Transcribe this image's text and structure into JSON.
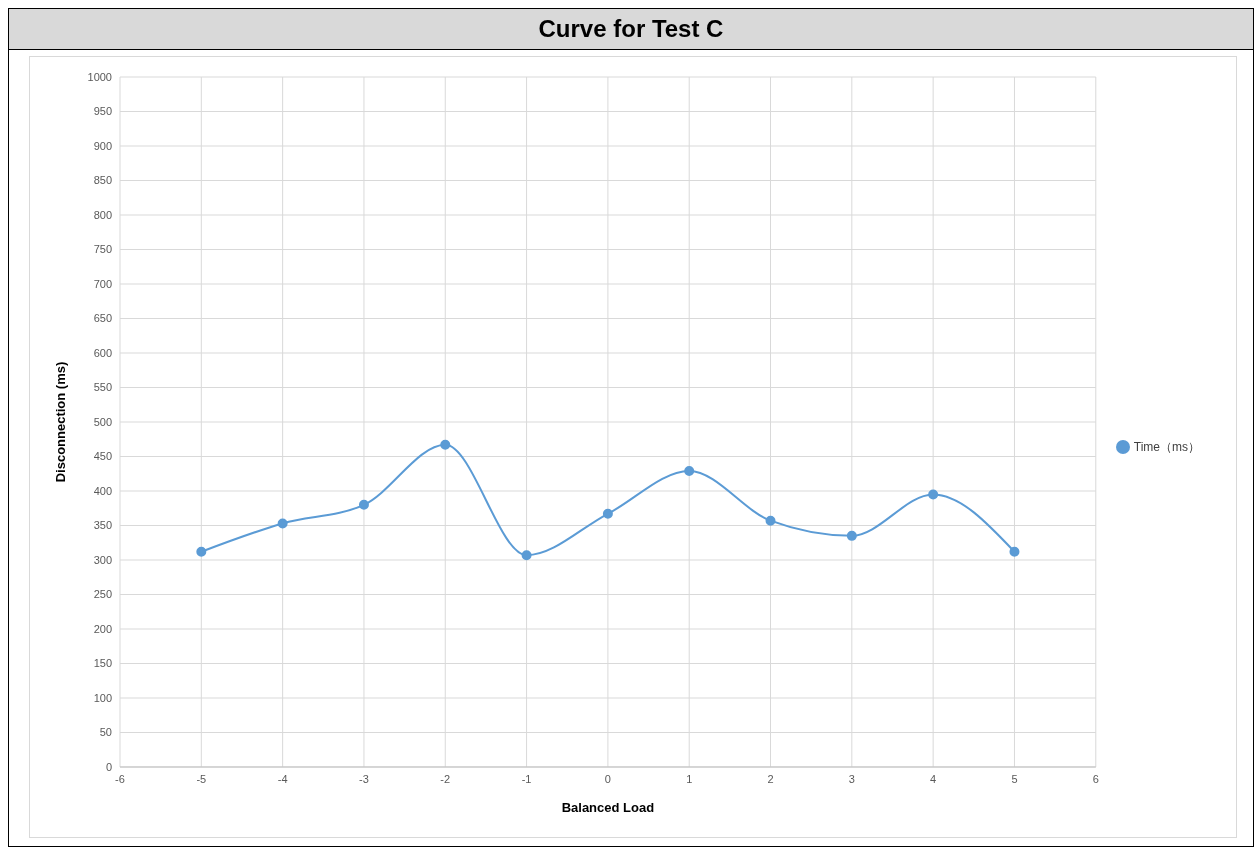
{
  "chart_data": {
    "type": "line",
    "title": "Curve for Test C",
    "xlabel": "Balanced Load",
    "ylabel": "Disconnection (ms)",
    "x": [
      -5,
      -4,
      -3,
      -2,
      -1,
      0,
      1,
      2,
      3,
      4,
      5
    ],
    "series": [
      {
        "name": "Time（ms）",
        "color": "#5b9bd5",
        "values": [
          312,
          353,
          380,
          467,
          307,
          367,
          429,
          357,
          335,
          395,
          312
        ]
      }
    ],
    "xlim": [
      -6,
      6
    ],
    "xticks": [
      -6,
      -5,
      -4,
      -3,
      -2,
      -1,
      0,
      1,
      2,
      3,
      4,
      5,
      6
    ],
    "ylim": [
      0,
      1000
    ],
    "yticks": [
      0,
      50,
      100,
      150,
      200,
      250,
      300,
      350,
      400,
      450,
      500,
      550,
      600,
      650,
      700,
      750,
      800,
      850,
      900,
      950,
      1000
    ],
    "grid": true,
    "legend": "right",
    "marker": "circle",
    "line_style": "solid"
  }
}
